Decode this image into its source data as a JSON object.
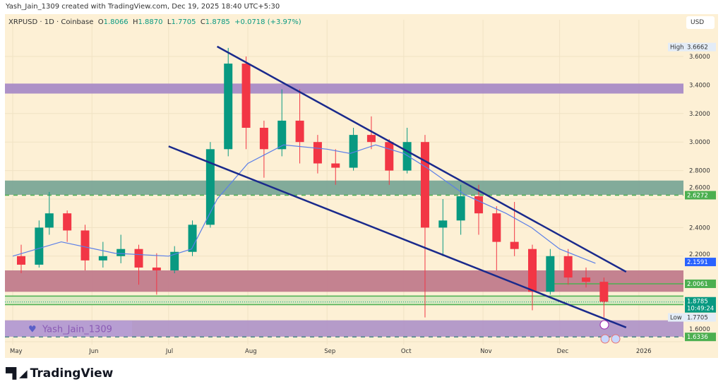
{
  "header": {
    "credit": "Yash_Jain_1309 created with TradingView.com, Dec 19, 2025 18:40 UTC+5:30"
  },
  "legend": {
    "symbol": "XRPUSD · 1D · Coinbase",
    "o_label": "O",
    "o": "1.8066",
    "h_label": "H",
    "h": "1.8870",
    "l_label": "L",
    "l": "1.7705",
    "c_label": "C",
    "c": "1.8785",
    "change": "+0.0718 (+3.97%)"
  },
  "currency": "USD",
  "watermark": "Yash_Jain_1309",
  "brand": "TradingView",
  "colors": {
    "background": "#fdf0d5",
    "up": "#089981",
    "down": "#f23645",
    "ma": "#5b7fe8",
    "trendline": "#1a2a8c",
    "level_green": "#4caf50",
    "last_price": "#089981",
    "blue_label": "#2962ff"
  },
  "chart_data": {
    "type": "candlestick",
    "symbol": "XRPUSD",
    "interval": "1D",
    "note_resolution": "approximate weekly OHLC read from daily candles",
    "ylim": [
      1.55,
      3.75
    ],
    "y_ticks": [
      "3.6000",
      "3.4000",
      "3.2000",
      "3.0000",
      "2.8000",
      "2.6000",
      "2.4000",
      "2.2000",
      "1.6000"
    ],
    "x_ticks": [
      {
        "label": "May",
        "date": "2025-05-01"
      },
      {
        "label": "Jun",
        "date": "2025-06-01"
      },
      {
        "label": "Jul",
        "date": "2025-07-01"
      },
      {
        "label": "Aug",
        "date": "2025-08-01"
      },
      {
        "label": "Sep",
        "date": "2025-09-01"
      },
      {
        "label": "Oct",
        "date": "2025-10-01"
      },
      {
        "label": "Nov",
        "date": "2025-11-01"
      },
      {
        "label": "Dec",
        "date": "2025-12-01"
      },
      {
        "label": "2026",
        "date": "2026-01-01"
      }
    ],
    "candles": [
      [
        "2025-05-01",
        2.2,
        2.28,
        2.08,
        2.14
      ],
      [
        "2025-05-08",
        2.14,
        2.45,
        2.12,
        2.4
      ],
      [
        "2025-05-12",
        2.4,
        2.65,
        2.35,
        2.5
      ],
      [
        "2025-05-19",
        2.5,
        2.52,
        2.3,
        2.38
      ],
      [
        "2025-05-26",
        2.38,
        2.42,
        2.1,
        2.17
      ],
      [
        "2025-06-02",
        2.17,
        2.3,
        2.12,
        2.2
      ],
      [
        "2025-06-09",
        2.2,
        2.35,
        2.15,
        2.25
      ],
      [
        "2025-06-16",
        2.25,
        2.28,
        2.0,
        2.12
      ],
      [
        "2025-06-23",
        2.12,
        2.22,
        1.93,
        2.1
      ],
      [
        "2025-06-30",
        2.1,
        2.27,
        2.08,
        2.23
      ],
      [
        "2025-07-07",
        2.23,
        2.45,
        2.2,
        2.42
      ],
      [
        "2025-07-14",
        2.42,
        3.0,
        2.4,
        2.95
      ],
      [
        "2025-07-21",
        2.95,
        3.66,
        2.9,
        3.55
      ],
      [
        "2025-07-28",
        3.55,
        3.6,
        2.95,
        3.1
      ],
      [
        "2025-08-04",
        3.1,
        3.15,
        2.75,
        2.95
      ],
      [
        "2025-08-11",
        2.95,
        3.37,
        2.9,
        3.15
      ],
      [
        "2025-08-18",
        3.15,
        3.37,
        2.85,
        3.0
      ],
      [
        "2025-08-25",
        3.0,
        3.05,
        2.78,
        2.85
      ],
      [
        "2025-09-01",
        2.85,
        2.95,
        2.7,
        2.82
      ],
      [
        "2025-09-08",
        2.82,
        3.1,
        2.8,
        3.05
      ],
      [
        "2025-09-15",
        3.05,
        3.18,
        2.95,
        3.0
      ],
      [
        "2025-09-22",
        3.0,
        3.02,
        2.7,
        2.8
      ],
      [
        "2025-09-29",
        2.8,
        3.1,
        2.78,
        3.0
      ],
      [
        "2025-10-06",
        3.0,
        3.05,
        1.77,
        2.4
      ],
      [
        "2025-10-13",
        2.4,
        2.6,
        2.2,
        2.45
      ],
      [
        "2025-10-20",
        2.45,
        2.7,
        2.35,
        2.62
      ],
      [
        "2025-10-27",
        2.62,
        2.7,
        2.35,
        2.5
      ],
      [
        "2025-11-03",
        2.5,
        2.55,
        2.1,
        2.3
      ],
      [
        "2025-11-10",
        2.3,
        2.58,
        2.2,
        2.25
      ],
      [
        "2025-11-17",
        2.25,
        2.28,
        1.82,
        1.95
      ],
      [
        "2025-11-24",
        1.95,
        2.25,
        1.93,
        2.2
      ],
      [
        "2025-12-01",
        2.2,
        2.25,
        2.0,
        2.05
      ],
      [
        "2025-12-08",
        2.05,
        2.12,
        1.98,
        2.02
      ],
      [
        "2025-12-15",
        2.02,
        2.05,
        1.77,
        1.88
      ]
    ],
    "moving_average": [
      [
        "2025-05-01",
        2.2
      ],
      [
        "2025-05-20",
        2.3
      ],
      [
        "2025-06-10",
        2.22
      ],
      [
        "2025-07-01",
        2.2
      ],
      [
        "2025-07-10",
        2.25
      ],
      [
        "2025-07-20",
        2.6
      ],
      [
        "2025-08-01",
        2.85
      ],
      [
        "2025-08-15",
        2.98
      ],
      [
        "2025-09-01",
        2.95
      ],
      [
        "2025-09-10",
        2.92
      ],
      [
        "2025-09-20",
        2.98
      ],
      [
        "2025-10-01",
        2.92
      ],
      [
        "2025-10-10",
        2.82
      ],
      [
        "2025-10-25",
        2.63
      ],
      [
        "2025-11-10",
        2.5
      ],
      [
        "2025-11-20",
        2.4
      ],
      [
        "2025-12-01",
        2.25
      ],
      [
        "2025-12-15",
        2.15
      ]
    ],
    "trendlines": [
      {
        "from": [
          "2025-07-20",
          3.67
        ],
        "to": [
          "2025-12-27",
          2.09
        ]
      },
      {
        "from": [
          "2025-07-01",
          2.97
        ],
        "to": [
          "2025-12-27",
          1.7
        ]
      }
    ],
    "zones": [
      {
        "top": 3.41,
        "bottom": 3.34,
        "color": "#a98bc6"
      },
      {
        "top": 2.73,
        "bottom": 2.63,
        "color": "#7ba697"
      },
      {
        "top": 2.1,
        "bottom": 1.95,
        "color": "#c17b8c"
      },
      {
        "top": 1.92,
        "bottom": 1.86,
        "color": "#d8e8c0"
      },
      {
        "top": 1.75,
        "bottom": 1.635,
        "color": "#b196c8"
      }
    ],
    "levels": [
      {
        "price": 2.6272,
        "label": "2.6272",
        "style": "dashed",
        "color": "#4caf50"
      },
      {
        "price": 2.0061,
        "label": "2.0061",
        "style": "solid",
        "color": "#4caf50",
        "from": "2025-11-28"
      },
      {
        "price": 1.6336,
        "label": "1.6336",
        "style": "dashed",
        "color": "#4caf50"
      }
    ],
    "price_labels": {
      "high": {
        "tag": "High",
        "value": "3.6662"
      },
      "low": {
        "tag": "Low",
        "value": "1.7705"
      },
      "ma_value": "2.1591",
      "last": {
        "value": "1.8785",
        "countdown": "10:49:24"
      }
    }
  }
}
